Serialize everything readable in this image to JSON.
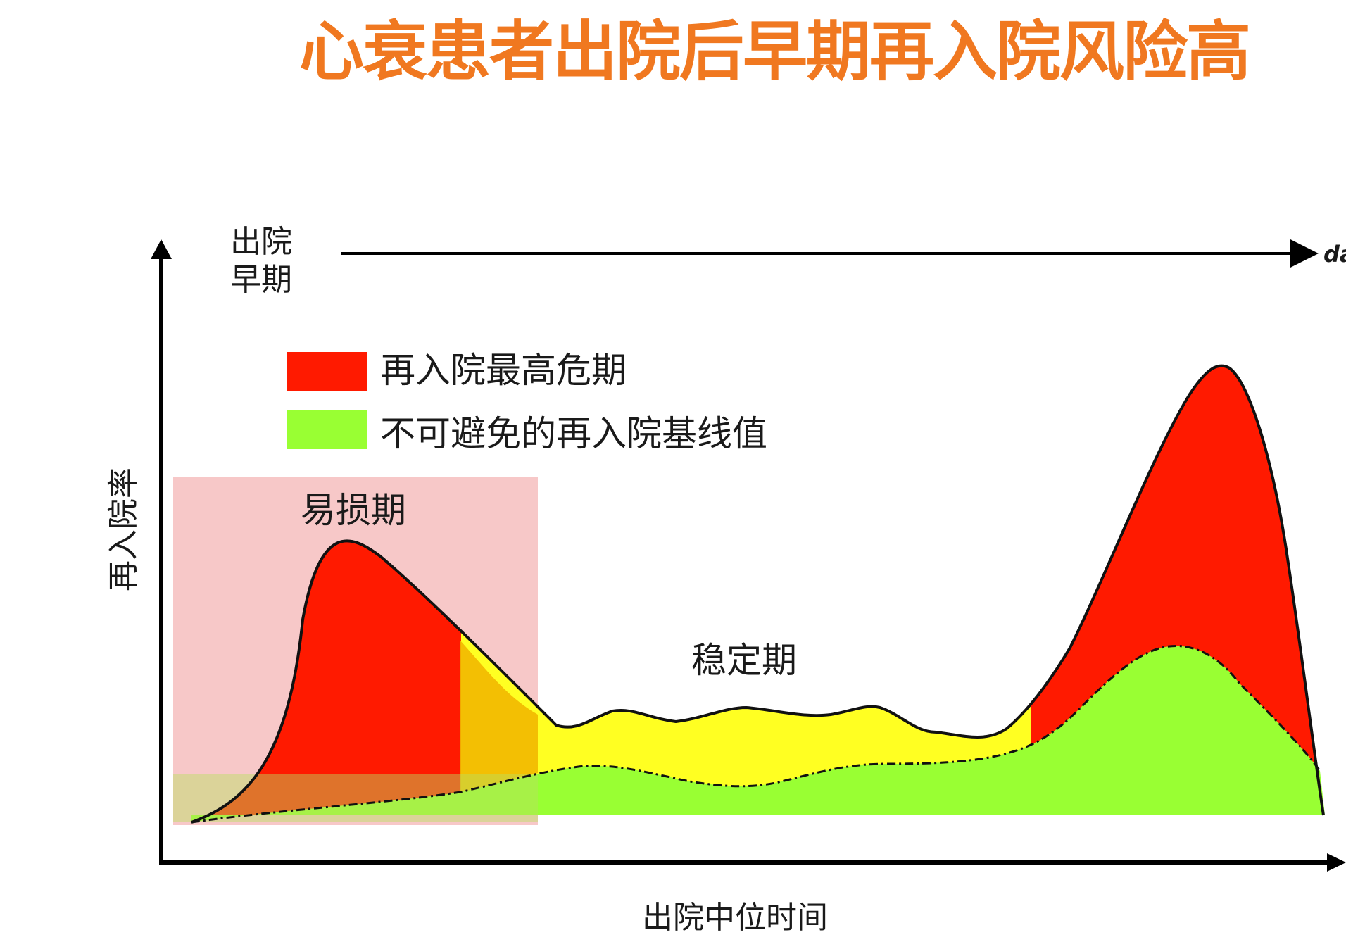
{
  "title": "心衰患者出院后早期再入院风险高",
  "top_axis": {
    "label_line1": "出院",
    "label_line2": "早期",
    "end_label": "da"
  },
  "legend": [
    {
      "label": "再入院最高危期",
      "color": "#ff1a00"
    },
    {
      "label": "不可避免的再入院基线值",
      "color": "#99ff33"
    }
  ],
  "phases": {
    "vulnerable": "易损期",
    "stable": "稳定期"
  },
  "y_axis_label": "再入院率",
  "x_axis_label": "出院中位时间",
  "colors": {
    "title": "#f07820",
    "highest_risk": "#ff1a00",
    "baseline": "#99ff33",
    "mid_band": "#ffff22",
    "vulnerable_zone": "#f7c8c8"
  }
}
